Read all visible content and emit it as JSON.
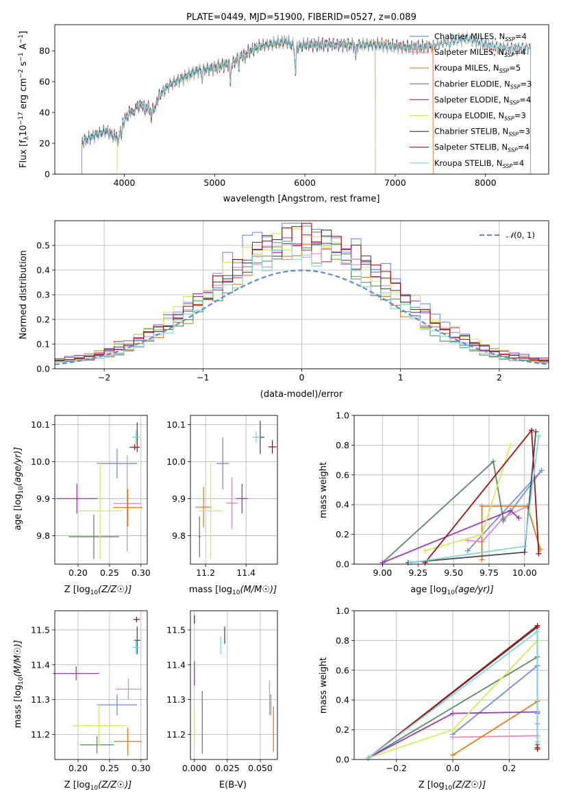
{
  "title": "PLATE=0449, MJD=51900, FIBERID=0527, z=0.089",
  "colors": {
    "Chabrier MILES": "#6b8fdc",
    "Salpeter MILES": "#e887bf",
    "Kroupa MILES": "#e07b1e",
    "Chabrier ELODIE": "#5a8a63",
    "Salpeter ELODIE": "#9b38b2",
    "Kroupa ELODIE": "#d6e85b",
    "Chabrier STELIB": "#4a4a4a",
    "Salpeter STELIB": "#a01111",
    "Kroupa STELIB": "#7fd6df",
    "normal": "#5b8bd6"
  },
  "chart_data": [
    {
      "id": "spectrum",
      "type": "line",
      "title": "PLATE=0449, MJD=51900, FIBERID=0527, z=0.089",
      "xlabel_base": "wavelength [Angstrom, rest frame]",
      "ylabel_pre": "Flux [f",
      "ylabel_post": "10",
      "xlim": [
        3230,
        8700
      ],
      "ylim": [
        0,
        97
      ],
      "xticks": [
        "4000",
        "5000",
        "6000",
        "7000",
        "8000"
      ],
      "yticks": [
        "0",
        "20",
        "40",
        "60",
        "80"
      ],
      "grid": false,
      "legend_position": "upper right",
      "legend": [
        {
          "model": "Chabrier MILES",
          "n": "4"
        },
        {
          "model": "Salpeter MILES",
          "n": "4"
        },
        {
          "model": "Kroupa MILES",
          "n": "5"
        },
        {
          "model": "Chabrier ELODIE",
          "n": "3"
        },
        {
          "model": "Salpeter ELODIE",
          "n": "4"
        },
        {
          "model": "Kroupa ELODIE",
          "n": "3"
        },
        {
          "model": "Chabrier STELIB",
          "n": "3"
        },
        {
          "model": "Salpeter STELIB",
          "n": "4"
        },
        {
          "model": "Kroupa STELIB",
          "n": "4"
        }
      ],
      "continuum": {
        "x": [
          3500,
          3600,
          3700,
          3800,
          3900,
          4000,
          4100,
          4200,
          4300,
          4400,
          4500,
          4600,
          4700,
          4800,
          4900,
          5000,
          5100,
          5200,
          5300,
          5400,
          5500,
          5600,
          5700,
          5800,
          5900,
          6000,
          6200,
          6400,
          6600,
          6800,
          7000,
          7200,
          7400,
          7600,
          7800,
          8000,
          8200,
          8400
        ],
        "y": [
          20,
          23,
          26,
          28,
          24,
          35,
          43,
          45,
          42,
          52,
          58,
          61,
          64,
          67,
          68,
          69,
          71,
          72,
          77,
          80,
          83,
          84,
          85,
          86,
          82,
          84,
          84,
          84,
          84,
          84,
          83,
          82,
          83,
          86,
          88,
          84,
          82,
          82
        ]
      },
      "absorption_lines": [
        [
          3934,
          10
        ],
        [
          3969,
          8
        ],
        [
          4102,
          6
        ],
        [
          4227,
          4
        ],
        [
          4300,
          7
        ],
        [
          4340,
          6
        ],
        [
          4861,
          6
        ],
        [
          5175,
          12
        ],
        [
          5270,
          5
        ],
        [
          5335,
          4
        ],
        [
          5895,
          18
        ],
        [
          6563,
          8
        ],
        [
          7600,
          4
        ]
      ],
      "range_end": {
        "Chabrier MILES": 7420,
        "Salpeter MILES": 7420,
        "Kroupa MILES": 7420,
        "Chabrier ELODIE": 6780,
        "Salpeter ELODIE": 6780,
        "Kroupa ELODIE": 6780,
        "Chabrier STELIB": 8500,
        "Salpeter STELIB": 8500,
        "Kroupa STELIB": 8500
      }
    },
    {
      "id": "residual_histogram",
      "type": "line",
      "xlabel": "(data-model)/error",
      "ylabel": "Normed distribution",
      "xlim": [
        -2.5,
        2.5
      ],
      "ylim": [
        0,
        0.6
      ],
      "xticks": [
        "−2",
        "−1",
        "0",
        "1",
        "2"
      ],
      "yticks": [
        "0.0",
        "0.1",
        "0.2",
        "0.3",
        "0.4",
        "0.5"
      ],
      "grid": true,
      "legend_position": "upper right",
      "bin_width": 0.1,
      "normal_curve": {
        "label": "N(0,1)",
        "mean": 0,
        "sigma": 1
      },
      "series": [
        {
          "model": "Chabrier MILES",
          "seed": 1,
          "peak": 0.56
        },
        {
          "model": "Salpeter MILES",
          "seed": 2,
          "peak": 0.48
        },
        {
          "model": "Kroupa MILES",
          "seed": 3,
          "peak": 0.46
        },
        {
          "model": "Chabrier ELODIE",
          "seed": 4,
          "peak": 0.49
        },
        {
          "model": "Salpeter ELODIE",
          "seed": 5,
          "peak": 0.47
        },
        {
          "model": "Kroupa ELODIE",
          "seed": 6,
          "peak": 0.51
        },
        {
          "model": "Chabrier STELIB",
          "seed": 7,
          "peak": 0.5
        },
        {
          "model": "Salpeter STELIB",
          "seed": 8,
          "peak": 0.53
        },
        {
          "model": "Kroupa STELIB",
          "seed": 9,
          "peak": 0.45
        }
      ]
    },
    {
      "id": "age_vs_metallicity",
      "type": "scatter",
      "xlabel": "Z [log10(Z/Z☉)]",
      "ylabel": "age  [log10(age/yr)]",
      "xlim": [
        0.163,
        0.31
      ],
      "ylim": [
        9.723,
        10.125
      ],
      "xticks": [
        "0.20",
        "0.25",
        "0.30"
      ],
      "yticks": [
        "9.8",
        "9.9",
        "10.0",
        "10.1"
      ],
      "grid": true,
      "points": [
        {
          "model": "Chabrier MILES",
          "x": 0.262,
          "xerr": 0.032,
          "y": 9.995,
          "yerr": 0.04
        },
        {
          "model": "Salpeter MILES",
          "x": 0.278,
          "xerr": 0.022,
          "y": 9.887,
          "yerr": 0.13
        },
        {
          "model": "Kroupa MILES",
          "x": 0.279,
          "xerr": 0.023,
          "y": 9.876,
          "yerr": 0.05
        },
        {
          "model": "Chabrier ELODIE",
          "x": 0.225,
          "xerr": 0.04,
          "y": 9.797,
          "yerr": 0.06
        },
        {
          "model": "Salpeter ELODIE",
          "x": 0.198,
          "xerr": 0.033,
          "y": 9.9,
          "yerr": 0.04
        },
        {
          "model": "Kroupa ELODIE",
          "x": 0.235,
          "xerr": 0.035,
          "y": 9.867,
          "yerr": 0.13
        },
        {
          "model": "Chabrier STELIB",
          "x": 0.294,
          "xerr": 0.004,
          "y": 10.066,
          "yerr": 0.04
        },
        {
          "model": "Salpeter STELIB",
          "x": 0.29,
          "xerr": 0.008,
          "y": 10.039,
          "yerr": 0.008
        },
        {
          "model": "Kroupa STELIB",
          "x": 0.292,
          "xerr": 0.006,
          "y": 10.066,
          "yerr": 0.018
        }
      ]
    },
    {
      "id": "age_vs_mass",
      "type": "scatter",
      "xlabel": "mass [log10(M/M☉)]",
      "xlim": [
        11.125,
        11.555
      ],
      "ylim": [
        9.723,
        10.125
      ],
      "xticks": [
        "11.2",
        "11.4"
      ],
      "yticks": [
        "9.8",
        "9.9",
        "10.0",
        "10.1"
      ],
      "grid": true,
      "points": [
        {
          "model": "Chabrier MILES",
          "x": 11.285,
          "xerr": 0.03,
          "y": 9.995,
          "yerr": 0.07
        },
        {
          "model": "Salpeter MILES",
          "x": 11.33,
          "xerr": 0.03,
          "y": 9.888,
          "yerr": 0.07
        },
        {
          "model": "Kroupa MILES",
          "x": 11.19,
          "xerr": 0.04,
          "y": 9.877,
          "yerr": 0.055
        },
        {
          "model": "Chabrier ELODIE",
          "x": 11.17,
          "xerr": 0.006,
          "y": 9.797,
          "yerr": 0.055
        },
        {
          "model": "Salpeter ELODIE",
          "x": 11.38,
          "xerr": 0.03,
          "y": 9.9,
          "yerr": 0.04
        },
        {
          "model": "Kroupa ELODIE",
          "x": 11.225,
          "xerr": 0.06,
          "y": 9.867,
          "yerr": 0.13
        },
        {
          "model": "Chabrier STELIB",
          "x": 11.47,
          "xerr": 0.02,
          "y": 10.066,
          "yerr": 0.045
        },
        {
          "model": "Salpeter STELIB",
          "x": 11.53,
          "xerr": 0.02,
          "y": 10.04,
          "yerr": 0.018
        },
        {
          "model": "Kroupa STELIB",
          "x": 11.45,
          "xerr": 0.02,
          "y": 10.066,
          "yerr": 0.015
        }
      ]
    },
    {
      "id": "mass_weight_vs_age",
      "type": "line",
      "xlabel": "age  [log10(age/yr)]",
      "ylabel": "mass weight",
      "xlim": [
        8.8,
        10.17
      ],
      "ylim": [
        0,
        1
      ],
      "xticks": [
        "9.00",
        "9.25",
        "9.50",
        "9.75",
        "10.00"
      ],
      "yticks": [
        "0.0",
        "0.2",
        "0.4",
        "0.6",
        "0.8",
        "1.0"
      ],
      "grid": true,
      "series": [
        {
          "model": "Chabrier MILES",
          "x": [
            9.6,
            10.12,
            9.85
          ],
          "y": [
            0.09,
            0.63,
            0.29
          ]
        },
        {
          "model": "Salpeter MILES",
          "x": [
            9.6,
            9.7,
            9.85,
            10.02
          ],
          "y": [
            0.16,
            0.15,
            0.31,
            0.39
          ]
        },
        {
          "model": "Kroupa MILES",
          "x": [
            9.7,
            9.7,
            10.02,
            10.11
          ],
          "y": [
            0.03,
            0.39,
            0.39,
            0.1
          ]
        },
        {
          "model": "Chabrier ELODIE",
          "x": [
            9.0,
            9.78,
            9.85
          ],
          "y": [
            0.01,
            0.69,
            0.3
          ]
        },
        {
          "model": "Salpeter ELODIE",
          "x": [
            9.0,
            9.9,
            9.96
          ],
          "y": [
            0.01,
            0.36,
            0.31
          ]
        },
        {
          "model": "Kroupa ELODIE",
          "x": [
            9.3,
            9.7,
            9.9
          ],
          "y": [
            0.09,
            0.2,
            0.8
          ]
        },
        {
          "model": "Chabrier STELIB",
          "x": [
            9.18,
            10.0,
            10.08
          ],
          "y": [
            0.01,
            0.08,
            0.89
          ]
        },
        {
          "model": "Salpeter STELIB",
          "x": [
            9.3,
            10.05,
            10.1
          ],
          "y": [
            0.01,
            0.9,
            0.07
          ]
        },
        {
          "model": "Kroupa STELIB",
          "x": [
            9.2,
            10.0,
            10.1
          ],
          "y": [
            0.01,
            0.12,
            0.86
          ]
        }
      ]
    },
    {
      "id": "mass_vs_metallicity",
      "type": "scatter",
      "xlabel": "Z [log10(Z/Z☉)]",
      "ylabel": "mass [log10(M/M☉)]",
      "xlim": [
        0.163,
        0.31
      ],
      "ylim": [
        11.128,
        11.555
      ],
      "xticks": [
        "0.20",
        "0.25",
        "0.30"
      ],
      "yticks": [
        "11.2",
        "11.3",
        "11.4",
        "11.5"
      ],
      "grid": true,
      "points": [
        {
          "model": "Chabrier MILES",
          "x": 0.262,
          "xerr": 0.032,
          "y": 11.285,
          "yerr": 0.03
        },
        {
          "model": "Salpeter MILES",
          "x": 0.28,
          "xerr": 0.02,
          "y": 11.33,
          "yerr": 0.03
        },
        {
          "model": "Kroupa MILES",
          "x": 0.279,
          "xerr": 0.022,
          "y": 11.18,
          "yerr": 0.04
        },
        {
          "model": "Chabrier ELODIE",
          "x": 0.23,
          "xerr": 0.027,
          "y": 11.17,
          "yerr": 0.025
        },
        {
          "model": "Salpeter ELODIE",
          "x": 0.197,
          "xerr": 0.037,
          "y": 11.375,
          "yerr": 0.02
        },
        {
          "model": "Kroupa ELODIE",
          "x": 0.233,
          "xerr": 0.042,
          "y": 11.225,
          "yerr": 0.06
        },
        {
          "model": "Chabrier STELIB",
          "x": 0.294,
          "xerr": 0.005,
          "y": 11.47,
          "yerr": 0.04
        },
        {
          "model": "Salpeter STELIB",
          "x": 0.293,
          "xerr": 0.005,
          "y": 11.53,
          "yerr": 0.008
        },
        {
          "model": "Kroupa STELIB",
          "x": 0.292,
          "xerr": 0.006,
          "y": 11.45,
          "yerr": 0.02
        }
      ]
    },
    {
      "id": "mass_vs_extinction",
      "type": "scatter",
      "xlabel": "E(B-V)",
      "xlim": [
        -0.003,
        0.063
      ],
      "ylim": [
        11.128,
        11.555
      ],
      "xticks": [
        "0.000",
        "0.025",
        "0.050"
      ],
      "yticks": [
        "11.2",
        "11.3",
        "11.4",
        "11.5"
      ],
      "grid": true,
      "points": [
        {
          "model": "Chabrier MILES",
          "x": 0.058,
          "xerr": 0.0,
          "y": 11.285,
          "yerr": 0.03
        },
        {
          "model": "Salpeter MILES",
          "x": 0.057,
          "xerr": 0.0,
          "y": 11.305,
          "yerr": 0.05
        },
        {
          "model": "Kroupa MILES",
          "x": 0.06,
          "xerr": 0.0,
          "y": 11.215,
          "yerr": 0.065
        },
        {
          "model": "Chabrier ELODIE",
          "x": 0.006,
          "xerr": 0.0,
          "y": 11.235,
          "yerr": 0.09
        },
        {
          "model": "Salpeter ELODIE",
          "x": 0.0,
          "xerr": 0.0,
          "y": 11.375,
          "yerr": 0.035
        },
        {
          "model": "Kroupa ELODIE",
          "x": 0.0,
          "xerr": 0.0,
          "y": 11.225,
          "yerr": 0.055
        },
        {
          "model": "Chabrier STELIB",
          "x": 0.023,
          "xerr": 0.0,
          "y": 11.485,
          "yerr": 0.025
        },
        {
          "model": "Salpeter STELIB",
          "x": 0.0,
          "xerr": 0.0,
          "y": 11.53,
          "yerr": 0.012
        },
        {
          "model": "Kroupa STELIB",
          "x": 0.02,
          "xerr": 0.0,
          "y": 11.455,
          "yerr": 0.025
        }
      ]
    },
    {
      "id": "mass_weight_vs_metallicity",
      "type": "line",
      "xlabel": "Z [log10(Z/Z☉)]",
      "ylabel": "mass weight",
      "xlim": [
        -0.35,
        0.34
      ],
      "ylim": [
        0,
        1
      ],
      "xticks": [
        "−0.2",
        "0.0",
        "0.2"
      ],
      "yticks": [
        "0.0",
        "0.2",
        "0.4",
        "0.6",
        "0.8",
        "1.0"
      ],
      "grid": true,
      "series": [
        {
          "model": "Chabrier MILES",
          "x": [
            0.0,
            0.3,
            0.3
          ],
          "y": [
            0.17,
            0.63,
            0.1
          ]
        },
        {
          "model": "Salpeter MILES",
          "x": [
            0.0,
            0.3,
            0.3
          ],
          "y": [
            0.15,
            0.16,
            0.24
          ]
        },
        {
          "model": "Kroupa MILES",
          "x": [
            0.0,
            0.3,
            0.3
          ],
          "y": [
            0.03,
            0.39,
            0.1
          ]
        },
        {
          "model": "Chabrier ELODIE",
          "x": [
            -0.3,
            0.3,
            0.3
          ],
          "y": [
            0.01,
            0.69,
            0.31
          ]
        },
        {
          "model": "Salpeter ELODIE",
          "x": [
            -0.3,
            0.0,
            0.3
          ],
          "y": [
            0.01,
            0.31,
            0.32
          ]
        },
        {
          "model": "Kroupa ELODIE",
          "x": [
            -0.3,
            0.0,
            0.3,
            0.3
          ],
          "y": [
            0.01,
            0.2,
            0.8,
            0.15
          ]
        },
        {
          "model": "Chabrier STELIB",
          "x": [
            -0.3,
            0.3,
            0.3
          ],
          "y": [
            0.01,
            0.89,
            0.08
          ]
        },
        {
          "model": "Salpeter STELIB",
          "x": [
            -0.3,
            0.3,
            0.3
          ],
          "y": [
            0.01,
            0.9,
            0.07
          ]
        },
        {
          "model": "Kroupa STELIB",
          "x": [
            -0.3,
            0.3,
            0.3
          ],
          "y": [
            0.01,
            0.86,
            0.12
          ]
        }
      ]
    }
  ]
}
